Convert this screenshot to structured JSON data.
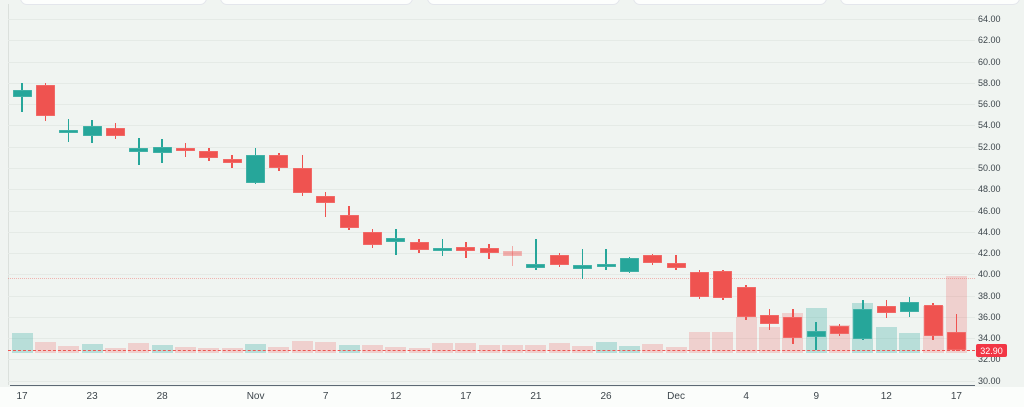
{
  "chart_data": {
    "type": "candlestick",
    "title": "",
    "price_axis": {
      "side": "right",
      "min": 30,
      "max": 64,
      "step": 2,
      "ticks": [
        "64.00",
        "62.00",
        "60.00",
        "58.00",
        "56.00",
        "54.00",
        "52.00",
        "50.00",
        "48.00",
        "46.00",
        "44.00",
        "42.00",
        "40.00",
        "38.00",
        "36.00",
        "34.00",
        "32.00",
        "30.00"
      ]
    },
    "time_axis": {
      "ticks": [
        {
          "label": "17",
          "i": 1
        },
        {
          "label": "23",
          "i": 4
        },
        {
          "label": "28",
          "i": 7
        },
        {
          "label": "Nov",
          "i": 11
        },
        {
          "label": "7",
          "i": 14
        },
        {
          "label": "12",
          "i": 17
        },
        {
          "label": "17",
          "i": 20
        },
        {
          "label": "21",
          "i": 23
        },
        {
          "label": "26",
          "i": 26
        },
        {
          "label": "Dec",
          "i": 29
        },
        {
          "label": "4",
          "i": 32
        },
        {
          "label": "9",
          "i": 35
        },
        {
          "label": "12",
          "i": 38
        },
        {
          "label": "17",
          "i": 41
        }
      ]
    },
    "last_price": {
      "label": "32.90",
      "value": 32.9,
      "direction": "down"
    },
    "reference_price": 39.7,
    "grid": true,
    "series_note": "each candle = [open, high, low, close, volume_pct_of_max, volume_color(g/r), faded_flag]",
    "series": [
      [
        56.7,
        58.0,
        55.3,
        57.3,
        26,
        "g",
        0
      ],
      [
        57.8,
        58.0,
        54.4,
        54.9,
        14,
        "r",
        0
      ],
      [
        53.3,
        54.6,
        52.4,
        53.6,
        9,
        "r",
        0
      ],
      [
        53.0,
        54.5,
        52.3,
        53.9,
        12,
        "g",
        0
      ],
      [
        53.8,
        54.2,
        52.7,
        53.0,
        6,
        "r",
        0
      ],
      [
        51.5,
        52.8,
        50.3,
        51.9,
        13,
        "r",
        0
      ],
      [
        51.4,
        52.7,
        50.5,
        52.0,
        10,
        "g",
        0
      ],
      [
        51.9,
        52.3,
        51.0,
        51.6,
        8,
        "r",
        0
      ],
      [
        51.6,
        51.9,
        50.7,
        50.9,
        6,
        "r",
        0
      ],
      [
        50.8,
        51.2,
        50.0,
        50.5,
        6,
        "r",
        0
      ],
      [
        48.6,
        51.9,
        48.5,
        51.2,
        12,
        "g",
        0
      ],
      [
        51.2,
        51.4,
        49.7,
        50.0,
        8,
        "r",
        0
      ],
      [
        50.0,
        51.2,
        47.4,
        47.6,
        16,
        "r",
        0
      ],
      [
        47.4,
        47.7,
        45.4,
        46.7,
        14,
        "r",
        0
      ],
      [
        45.6,
        46.4,
        44.2,
        44.4,
        10,
        "g",
        0
      ],
      [
        44.0,
        44.3,
        42.5,
        42.8,
        10,
        "r",
        0
      ],
      [
        43.0,
        44.3,
        41.8,
        43.4,
        8,
        "r",
        0
      ],
      [
        43.0,
        43.3,
        42.0,
        42.3,
        6,
        "r",
        0
      ],
      [
        42.2,
        43.3,
        41.7,
        42.5,
        13,
        "r",
        0
      ],
      [
        42.6,
        43.0,
        41.5,
        42.2,
        13,
        "r",
        0
      ],
      [
        42.5,
        42.9,
        41.4,
        42.0,
        10,
        "r",
        0
      ],
      [
        42.2,
        42.7,
        40.8,
        41.7,
        10,
        "r",
        1
      ],
      [
        40.6,
        43.3,
        40.4,
        41.0,
        10,
        "r",
        0
      ],
      [
        41.8,
        42.0,
        40.7,
        40.9,
        13,
        "r",
        0
      ],
      [
        40.55,
        42.4,
        39.6,
        40.9,
        9,
        "r",
        0
      ],
      [
        40.7,
        42.4,
        40.4,
        41.0,
        14,
        "g",
        0
      ],
      [
        40.2,
        41.6,
        40.1,
        41.5,
        9,
        "g",
        0
      ],
      [
        41.8,
        41.9,
        40.9,
        41.1,
        12,
        "r",
        0
      ],
      [
        41.1,
        41.8,
        40.4,
        40.6,
        8,
        "r",
        0
      ],
      [
        40.2,
        40.4,
        37.7,
        37.9,
        27,
        "r",
        0
      ],
      [
        40.3,
        40.4,
        37.6,
        37.8,
        27,
        "r",
        0
      ],
      [
        38.8,
        39.0,
        35.7,
        36.0,
        47,
        "r",
        0
      ],
      [
        36.2,
        36.7,
        34.8,
        35.3,
        34,
        "r",
        0
      ],
      [
        36.0,
        36.7,
        33.5,
        34.0,
        52,
        "r",
        0
      ],
      [
        34.1,
        35.5,
        32.9,
        34.7,
        58,
        "g",
        0
      ],
      [
        35.1,
        35.3,
        34.2,
        34.4,
        36,
        "r",
        0
      ],
      [
        33.9,
        37.6,
        33.8,
        36.7,
        65,
        "g",
        0
      ],
      [
        37.0,
        37.6,
        35.9,
        36.4,
        34,
        "g",
        0
      ],
      [
        36.5,
        37.9,
        36.0,
        37.4,
        26,
        "g",
        0
      ],
      [
        37.1,
        37.3,
        33.8,
        34.2,
        61,
        "r",
        0
      ],
      [
        34.6,
        36.3,
        32.8,
        32.9,
        100,
        "r",
        0
      ]
    ],
    "colors": {
      "up": "#26a69a",
      "down": "#ef5350",
      "volume_up": "rgba(38,166,154,0.28)",
      "volume_down": "rgba(239,83,80,0.22)",
      "badge": "#f23645",
      "background": "#f0f4f1",
      "axis_text": "#3c454b"
    }
  }
}
